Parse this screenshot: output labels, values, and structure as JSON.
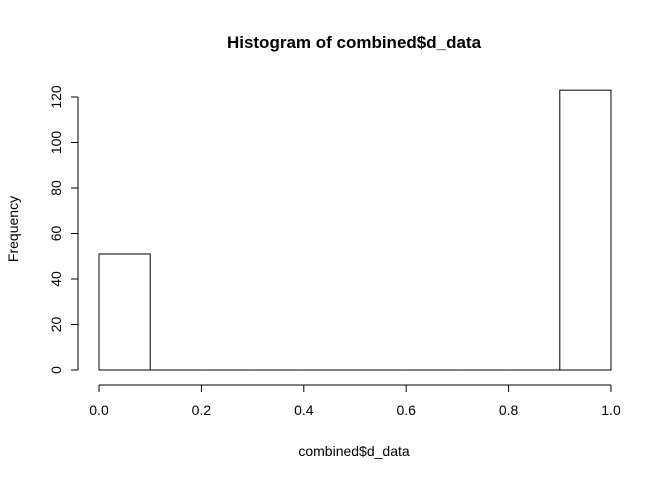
{
  "chart_data": {
    "type": "bar",
    "title": "Histogram of combined$d_data",
    "xlabel": "combined$d_data",
    "ylabel": "Frequency",
    "xlim": [
      0,
      1
    ],
    "ylim": [
      0,
      120
    ],
    "x_ticks": [
      "0.0",
      "0.2",
      "0.4",
      "0.6",
      "0.8",
      "1.0"
    ],
    "y_ticks": [
      "0",
      "20",
      "40",
      "60",
      "80",
      "100",
      "120"
    ],
    "bins": [
      {
        "from": 0.0,
        "to": 0.1,
        "count": 51
      },
      {
        "from": 0.1,
        "to": 0.2,
        "count": 0
      },
      {
        "from": 0.2,
        "to": 0.3,
        "count": 0
      },
      {
        "from": 0.3,
        "to": 0.4,
        "count": 0
      },
      {
        "from": 0.4,
        "to": 0.5,
        "count": 0
      },
      {
        "from": 0.5,
        "to": 0.6,
        "count": 0
      },
      {
        "from": 0.6,
        "to": 0.7,
        "count": 0
      },
      {
        "from": 0.7,
        "to": 0.8,
        "count": 0
      },
      {
        "from": 0.8,
        "to": 0.9,
        "count": 0
      },
      {
        "from": 0.9,
        "to": 1.0,
        "count": 123
      }
    ],
    "grid": false,
    "bar_fill": "#ffffff",
    "bar_stroke": "#000000"
  }
}
